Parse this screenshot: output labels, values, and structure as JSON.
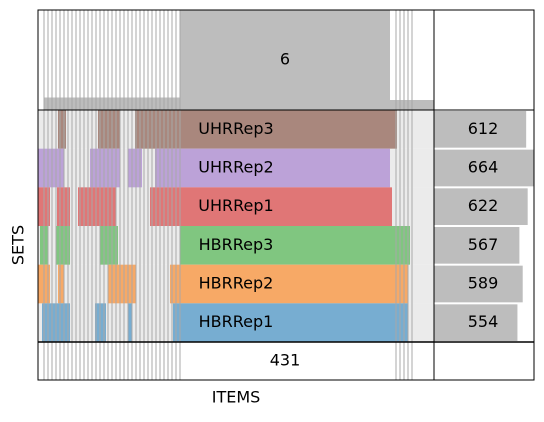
{
  "chart_data": {
    "type": "bar",
    "xlabel": "ITEMS",
    "ylabel": "SETS",
    "sets": [
      {
        "name": "UHRRep3",
        "size": 612,
        "color": "#A9877D"
      },
      {
        "name": "UHRRep2",
        "size": 664,
        "color": "#BCA2D8"
      },
      {
        "name": "UHRRep1",
        "size": 622,
        "color": "#E07676"
      },
      {
        "name": "HBRRep3",
        "size": 567,
        "color": "#80C680"
      },
      {
        "name": "HBRRep2",
        "size": 589,
        "color": "#F7A966"
      },
      {
        "name": "HBRRep1",
        "size": 554,
        "color": "#77ADD1"
      }
    ],
    "max_set_size": 664,
    "top_label": "6",
    "bottom_label": "431",
    "items": {
      "count": 664,
      "column_heights": [
        6,
        0,
        3,
        0
      ],
      "core": {
        "start": 180,
        "end": 390,
        "sets": [
          0,
          1,
          2,
          3,
          4,
          5
        ],
        "height": 6
      }
    }
  }
}
